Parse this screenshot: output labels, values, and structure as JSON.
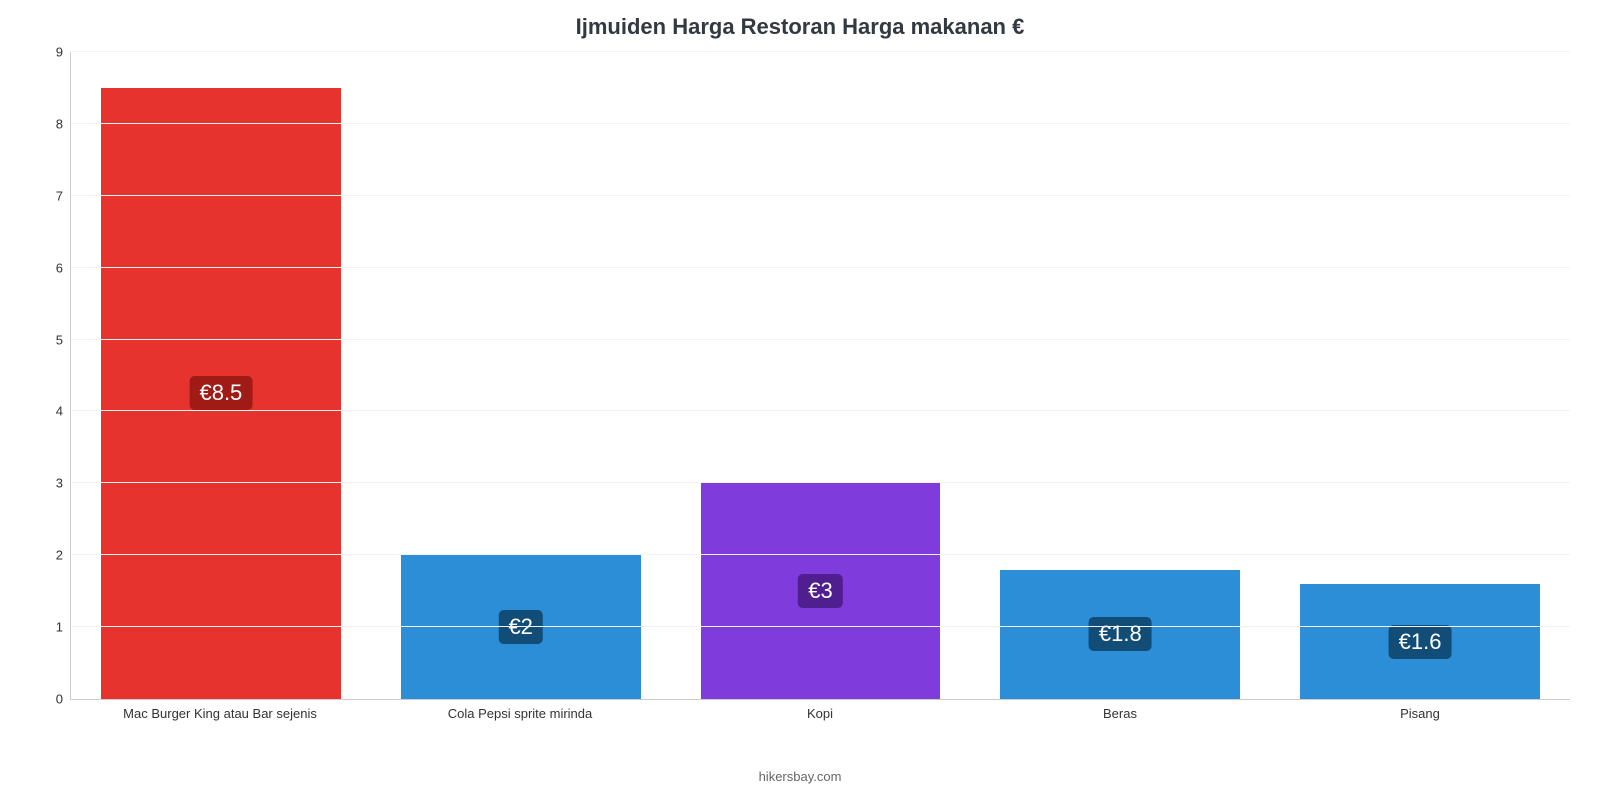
{
  "chart": {
    "type": "bar",
    "title": "Ijmuiden Harga Restoran Harga makanan €",
    "title_fontsize": 22,
    "title_color": "#333940",
    "background_color": "#ffffff",
    "grid_color": "#f2f2f2",
    "axis_line_color": "#cccccc",
    "ylim": [
      0,
      9
    ],
    "ytick_step": 1,
    "label_fontsize": 13,
    "label_color": "#333333",
    "bar_width_pct": 80,
    "value_badge": {
      "fontsize": 22,
      "text_color": "#ffffff",
      "radius": 5
    },
    "categories": [
      "Mac Burger King atau Bar sejenis",
      "Cola Pepsi sprite mirinda",
      "Kopi",
      "Beras",
      "Pisang"
    ],
    "values": [
      8.5,
      2,
      3,
      1.8,
      1.6
    ],
    "display_values": [
      "€8.5",
      "€2",
      "€3",
      "€1.8",
      "€1.6"
    ],
    "bar_colors": [
      "#e6332e",
      "#2c8ed6",
      "#7f3bdb",
      "#2c8ed6",
      "#2c8ed6"
    ],
    "badge_colors": [
      "#a11b16",
      "#124d78",
      "#4f1e8f",
      "#124d78",
      "#124d78"
    ]
  },
  "attribution": {
    "text": "hikersbay.com",
    "color": "#666666",
    "fontsize": 13
  }
}
